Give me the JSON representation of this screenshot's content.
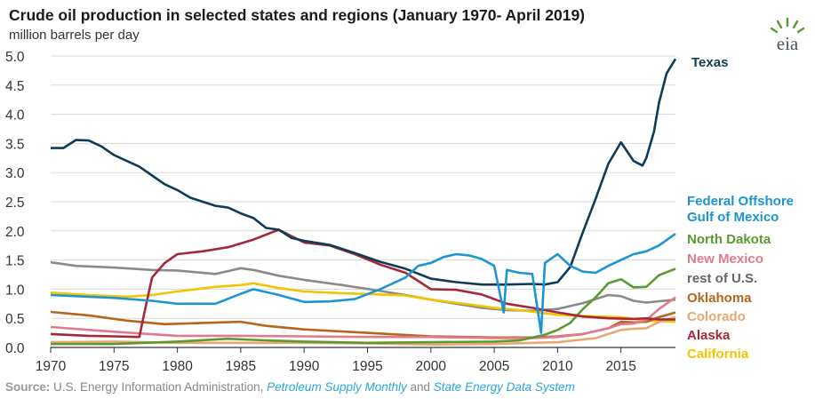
{
  "page": {
    "title": "Crude oil production in selected states and regions (January 1970- April 2019)",
    "subtitle": "million barrels per day",
    "logo_text": "eia",
    "source_label": "Source:",
    "source_text": "U.S. Energy Information Administration,",
    "source_pub1": "Petroleum Supply Monthly",
    "source_and": "and",
    "source_pub2": "State Energy Data System"
  },
  "chart_data": {
    "type": "line",
    "title": "Crude oil production in selected states and regions (January 1970- April 2019)",
    "ylabel": "million barrels per day",
    "xlabel": "",
    "xlim": [
      1970,
      2019.3
    ],
    "ylim": [
      0,
      5
    ],
    "x_ticks": [
      "1970",
      "1975",
      "1980",
      "1985",
      "1990",
      "1995",
      "2000",
      "2005",
      "2010",
      "2015"
    ],
    "x_tick_values": [
      1970,
      1975,
      1980,
      1985,
      1990,
      1995,
      2000,
      2005,
      2010,
      2015
    ],
    "y_ticks": [
      "0.0",
      "0.5",
      "1.0",
      "1.5",
      "2.0",
      "2.5",
      "3.0",
      "3.5",
      "4.0",
      "4.5",
      "5.0"
    ],
    "y_tick_values": [
      0,
      0.5,
      1.0,
      1.5,
      2.0,
      2.5,
      3.0,
      3.5,
      4.0,
      4.5,
      5.0
    ],
    "series": [
      {
        "name": "rest of U.S.",
        "label_lines": [
          "rest of U.S."
        ],
        "color": "#8a8a8a",
        "points": [
          [
            1970,
            1.46
          ],
          [
            1972,
            1.4
          ],
          [
            1975,
            1.37
          ],
          [
            1978,
            1.33
          ],
          [
            1980,
            1.32
          ],
          [
            1983,
            1.26
          ],
          [
            1985,
            1.36
          ],
          [
            1986,
            1.33
          ],
          [
            1988,
            1.23
          ],
          [
            1990,
            1.16
          ],
          [
            1993,
            1.07
          ],
          [
            1996,
            0.97
          ],
          [
            1998,
            0.9
          ],
          [
            2000,
            0.82
          ],
          [
            2002,
            0.75
          ],
          [
            2004,
            0.68
          ],
          [
            2006,
            0.64
          ],
          [
            2008,
            0.63
          ],
          [
            2010,
            0.66
          ],
          [
            2012,
            0.76
          ],
          [
            2014,
            0.9
          ],
          [
            2015,
            0.88
          ],
          [
            2016,
            0.8
          ],
          [
            2017,
            0.77
          ],
          [
            2019.3,
            0.82
          ]
        ]
      },
      {
        "name": "California",
        "label_lines": [
          "California"
        ],
        "color": "#f5c400",
        "points": [
          [
            1970,
            0.94
          ],
          [
            1973,
            0.9
          ],
          [
            1976,
            0.87
          ],
          [
            1978,
            0.9
          ],
          [
            1980,
            0.96
          ],
          [
            1983,
            1.04
          ],
          [
            1985,
            1.07
          ],
          [
            1986,
            1.1
          ],
          [
            1988,
            1.02
          ],
          [
            1990,
            0.96
          ],
          [
            1993,
            0.93
          ],
          [
            1996,
            0.91
          ],
          [
            1998,
            0.89
          ],
          [
            2000,
            0.82
          ],
          [
            2003,
            0.74
          ],
          [
            2005,
            0.68
          ],
          [
            2007,
            0.64
          ],
          [
            2010,
            0.56
          ],
          [
            2013,
            0.53
          ],
          [
            2015,
            0.52
          ],
          [
            2017,
            0.46
          ],
          [
            2019.3,
            0.44
          ]
        ]
      },
      {
        "name": "Oklahoma",
        "label_lines": [
          "Oklahoma"
        ],
        "color": "#b5651d",
        "points": [
          [
            1970,
            0.61
          ],
          [
            1973,
            0.55
          ],
          [
            1976,
            0.46
          ],
          [
            1979,
            0.4
          ],
          [
            1982,
            0.42
          ],
          [
            1985,
            0.44
          ],
          [
            1987,
            0.37
          ],
          [
            1990,
            0.31
          ],
          [
            1995,
            0.25
          ],
          [
            2000,
            0.19
          ],
          [
            2005,
            0.17
          ],
          [
            2008,
            0.17
          ],
          [
            2010,
            0.19
          ],
          [
            2012,
            0.23
          ],
          [
            2014,
            0.33
          ],
          [
            2015,
            0.44
          ],
          [
            2016,
            0.43
          ],
          [
            2017,
            0.44
          ],
          [
            2018,
            0.52
          ],
          [
            2019.3,
            0.6
          ]
        ]
      },
      {
        "name": "Colorado",
        "label_lines": [
          "Colorado"
        ],
        "color": "#e8a870",
        "points": [
          [
            1970,
            0.09
          ],
          [
            1975,
            0.1
          ],
          [
            1980,
            0.08
          ],
          [
            1985,
            0.08
          ],
          [
            1990,
            0.08
          ],
          [
            1995,
            0.07
          ],
          [
            2000,
            0.05
          ],
          [
            2005,
            0.06
          ],
          [
            2010,
            0.09
          ],
          [
            2013,
            0.16
          ],
          [
            2015,
            0.3
          ],
          [
            2016,
            0.32
          ],
          [
            2017,
            0.33
          ],
          [
            2018,
            0.44
          ],
          [
            2019.3,
            0.52
          ]
        ]
      },
      {
        "name": "New Mexico",
        "label_lines": [
          "New Mexico"
        ],
        "color": "#e07a8c",
        "points": [
          [
            1970,
            0.35
          ],
          [
            1975,
            0.27
          ],
          [
            1980,
            0.2
          ],
          [
            1985,
            0.2
          ],
          [
            1990,
            0.19
          ],
          [
            1995,
            0.18
          ],
          [
            2000,
            0.18
          ],
          [
            2005,
            0.16
          ],
          [
            2008,
            0.16
          ],
          [
            2010,
            0.18
          ],
          [
            2012,
            0.23
          ],
          [
            2014,
            0.33
          ],
          [
            2015,
            0.4
          ],
          [
            2016,
            0.41
          ],
          [
            2017,
            0.47
          ],
          [
            2018,
            0.66
          ],
          [
            2019.3,
            0.86
          ]
        ]
      },
      {
        "name": "North Dakota",
        "label_lines": [
          "North Dakota"
        ],
        "color": "#5a9a2e",
        "points": [
          [
            1970,
            0.06
          ],
          [
            1975,
            0.06
          ],
          [
            1980,
            0.1
          ],
          [
            1984,
            0.15
          ],
          [
            1986,
            0.13
          ],
          [
            1990,
            0.1
          ],
          [
            1995,
            0.08
          ],
          [
            2000,
            0.09
          ],
          [
            2005,
            0.1
          ],
          [
            2007,
            0.12
          ],
          [
            2009,
            0.22
          ],
          [
            2010,
            0.3
          ],
          [
            2011,
            0.42
          ],
          [
            2012,
            0.66
          ],
          [
            2013,
            0.86
          ],
          [
            2014,
            1.1
          ],
          [
            2015,
            1.17
          ],
          [
            2016,
            1.03
          ],
          [
            2017,
            1.04
          ],
          [
            2018,
            1.24
          ],
          [
            2019.3,
            1.35
          ]
        ]
      },
      {
        "name": "Alaska",
        "label_lines": [
          "Alaska"
        ],
        "color": "#a3283a",
        "points": [
          [
            1970,
            0.23
          ],
          [
            1973,
            0.2
          ],
          [
            1975,
            0.19
          ],
          [
            1977,
            0.18
          ],
          [
            1977.4,
            0.6
          ],
          [
            1978,
            1.2
          ],
          [
            1979,
            1.45
          ],
          [
            1980,
            1.6
          ],
          [
            1982,
            1.65
          ],
          [
            1984,
            1.72
          ],
          [
            1986,
            1.85
          ],
          [
            1988,
            2.02
          ],
          [
            1990,
            1.8
          ],
          [
            1992,
            1.75
          ],
          [
            1994,
            1.6
          ],
          [
            1996,
            1.42
          ],
          [
            1998,
            1.28
          ],
          [
            2000,
            1.0
          ],
          [
            2002,
            0.99
          ],
          [
            2004,
            0.91
          ],
          [
            2006,
            0.75
          ],
          [
            2008,
            0.68
          ],
          [
            2010,
            0.6
          ],
          [
            2012,
            0.53
          ],
          [
            2014,
            0.5
          ],
          [
            2016,
            0.49
          ],
          [
            2017,
            0.5
          ],
          [
            2018,
            0.48
          ],
          [
            2019.3,
            0.48
          ]
        ]
      },
      {
        "name": "Texas",
        "label_lines": [
          "Texas"
        ],
        "color": "#0e3b56",
        "points": [
          [
            1970,
            3.42
          ],
          [
            1971,
            3.42
          ],
          [
            1972,
            3.56
          ],
          [
            1973,
            3.55
          ],
          [
            1974,
            3.45
          ],
          [
            1975,
            3.3
          ],
          [
            1976,
            3.2
          ],
          [
            1977,
            3.1
          ],
          [
            1978,
            2.95
          ],
          [
            1979,
            2.8
          ],
          [
            1980,
            2.7
          ],
          [
            1981,
            2.57
          ],
          [
            1982,
            2.5
          ],
          [
            1983,
            2.43
          ],
          [
            1984,
            2.4
          ],
          [
            1985,
            2.3
          ],
          [
            1986,
            2.22
          ],
          [
            1987,
            2.05
          ],
          [
            1988,
            2.02
          ],
          [
            1989,
            1.88
          ],
          [
            1990,
            1.83
          ],
          [
            1992,
            1.76
          ],
          [
            1994,
            1.62
          ],
          [
            1996,
            1.47
          ],
          [
            1998,
            1.35
          ],
          [
            2000,
            1.18
          ],
          [
            2002,
            1.12
          ],
          [
            2004,
            1.08
          ],
          [
            2006,
            1.08
          ],
          [
            2008,
            1.09
          ],
          [
            2009,
            1.08
          ],
          [
            2010,
            1.12
          ],
          [
            2011,
            1.38
          ],
          [
            2012,
            1.98
          ],
          [
            2013,
            2.55
          ],
          [
            2014,
            3.15
          ],
          [
            2015,
            3.52
          ],
          [
            2016,
            3.2
          ],
          [
            2016.7,
            3.12
          ],
          [
            2017,
            3.25
          ],
          [
            2017.6,
            3.7
          ],
          [
            2018,
            4.2
          ],
          [
            2018.6,
            4.7
          ],
          [
            2019.3,
            4.95
          ]
        ]
      },
      {
        "name": "Federal Offshore Gulf of Mexico",
        "label_lines": [
          "Federal Offshore",
          "Gulf of Mexico"
        ],
        "color": "#1b96d2",
        "points": [
          [
            1970,
            0.9
          ],
          [
            1972,
            0.88
          ],
          [
            1975,
            0.85
          ],
          [
            1978,
            0.8
          ],
          [
            1980,
            0.75
          ],
          [
            1983,
            0.75
          ],
          [
            1985,
            0.92
          ],
          [
            1986,
            1.0
          ],
          [
            1988,
            0.9
          ],
          [
            1990,
            0.78
          ],
          [
            1992,
            0.79
          ],
          [
            1994,
            0.83
          ],
          [
            1996,
            1.0
          ],
          [
            1998,
            1.2
          ],
          [
            1999,
            1.4
          ],
          [
            2000,
            1.45
          ],
          [
            2001,
            1.55
          ],
          [
            2002,
            1.6
          ],
          [
            2003,
            1.58
          ],
          [
            2004,
            1.52
          ],
          [
            2005,
            1.4
          ],
          [
            2005.75,
            0.6
          ],
          [
            2006,
            1.33
          ],
          [
            2007,
            1.28
          ],
          [
            2008,
            1.26
          ],
          [
            2008.7,
            0.25
          ],
          [
            2009,
            1.45
          ],
          [
            2010,
            1.6
          ],
          [
            2011,
            1.4
          ],
          [
            2012,
            1.3
          ],
          [
            2013,
            1.28
          ],
          [
            2014,
            1.4
          ],
          [
            2015,
            1.5
          ],
          [
            2016,
            1.6
          ],
          [
            2017,
            1.65
          ],
          [
            2018,
            1.75
          ],
          [
            2019.3,
            1.95
          ]
        ]
      }
    ]
  }
}
